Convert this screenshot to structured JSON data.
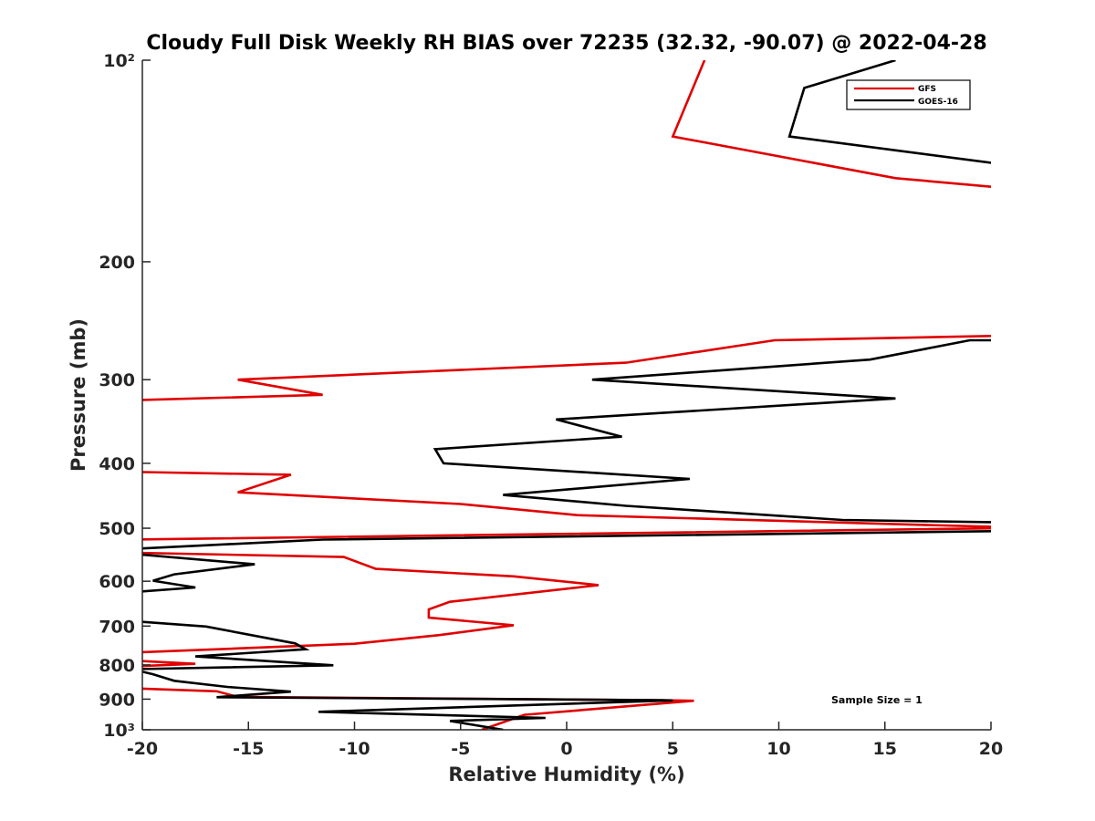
{
  "chart_data": {
    "type": "line",
    "title": "Cloudy Full Disk Weekly RH BIAS over 72235 (32.32, -90.07) @ 2022-04-28",
    "xlabel": "Relative Humidity (%)",
    "ylabel": "Pressure (mb)",
    "xlim": [
      -20,
      20
    ],
    "ylim": [
      100,
      1000
    ],
    "yscale": "log",
    "y_reversed": true,
    "xticks": [
      -20,
      -15,
      -10,
      -5,
      0,
      5,
      10,
      15,
      20
    ],
    "xtick_labels": [
      "-20",
      "-15",
      "-10",
      "-5",
      "0",
      "5",
      "10",
      "15",
      "20"
    ],
    "yticks": [
      100,
      200,
      300,
      400,
      500,
      600,
      700,
      800,
      900,
      1000
    ],
    "ytick_labels": [
      "10²",
      "200",
      "300",
      "400",
      "500",
      "600",
      "700",
      "800",
      "900",
      "10³"
    ],
    "legend_position": "top-right",
    "annotation": "Sample Size = 1",
    "series": [
      {
        "name": "GFS",
        "color": "#e00000",
        "points": [
          [
            6.5,
            100
          ],
          [
            5.0,
            130
          ],
          [
            15.5,
            150
          ],
          [
            20.5,
            155
          ],
          [
            20.5,
            258
          ],
          [
            9.8,
            262
          ],
          [
            2.8,
            283
          ],
          [
            -15.5,
            300
          ],
          [
            -11.5,
            316
          ],
          [
            -20.5,
            322
          ],
          [
            -20.5,
            412
          ],
          [
            -13.0,
            416
          ],
          [
            -15.5,
            442
          ],
          [
            -5.0,
            460
          ],
          [
            0.5,
            478
          ],
          [
            20.5,
            498
          ],
          [
            20.5,
            500
          ],
          [
            -20.5,
            520
          ],
          [
            -20.5,
            544
          ],
          [
            -10.5,
            552
          ],
          [
            -9.0,
            575
          ],
          [
            -2.5,
            590
          ],
          [
            1.5,
            608
          ],
          [
            -5.5,
            644
          ],
          [
            -6.5,
            661
          ],
          [
            -6.5,
            680
          ],
          [
            -2.5,
            698
          ],
          [
            -6.0,
            722
          ],
          [
            -10.0,
            744
          ],
          [
            -16.0,
            757
          ],
          [
            -20.5,
            767
          ],
          [
            -20.5,
            788
          ],
          [
            -17.5,
            797
          ],
          [
            -20.5,
            804
          ],
          [
            -20.5,
            867
          ],
          [
            -16.5,
            876
          ],
          [
            -15.5,
            893
          ],
          [
            5.0,
            904
          ],
          [
            6.0,
            905
          ],
          [
            -2.0,
            950
          ],
          [
            -4.0,
            1000
          ]
        ]
      },
      {
        "name": "GOES-16",
        "color": "#000000",
        "points": [
          [
            15.5,
            100
          ],
          [
            11.2,
            110
          ],
          [
            10.5,
            130
          ],
          [
            20.5,
            143
          ],
          [
            20.5,
            262
          ],
          [
            19.0,
            262
          ],
          [
            14.3,
            280
          ],
          [
            1.2,
            300
          ],
          [
            15.5,
            320
          ],
          [
            -0.5,
            344
          ],
          [
            2.6,
            365
          ],
          [
            -6.2,
            381
          ],
          [
            -5.8,
            400
          ],
          [
            5.8,
            422
          ],
          [
            -3.0,
            446
          ],
          [
            2.8,
            463
          ],
          [
            13.0,
            486
          ],
          [
            20.5,
            490
          ],
          [
            20.5,
            505
          ],
          [
            -11.5,
            520
          ],
          [
            -20.5,
            537
          ],
          [
            -20.5,
            546
          ],
          [
            -14.7,
            566
          ],
          [
            -18.5,
            586
          ],
          [
            -19.5,
            599
          ],
          [
            -17.5,
            613
          ],
          [
            -20.5,
            623
          ],
          [
            -20.5,
            688
          ],
          [
            -17.0,
            701
          ],
          [
            -12.8,
            743
          ],
          [
            -12.3,
            758
          ],
          [
            -17.5,
            777
          ],
          [
            -11.0,
            801
          ],
          [
            -20.5,
            812
          ],
          [
            -19.5,
            826
          ],
          [
            -18.5,
            845
          ],
          [
            -16.0,
            863
          ],
          [
            -13.0,
            877
          ],
          [
            -16.5,
            894
          ],
          [
            4.5,
            903
          ],
          [
            5.0,
            904
          ],
          [
            -11.7,
            940
          ],
          [
            -1.0,
            960
          ],
          [
            -5.5,
            970
          ],
          [
            -3.0,
            1000
          ]
        ]
      }
    ]
  }
}
